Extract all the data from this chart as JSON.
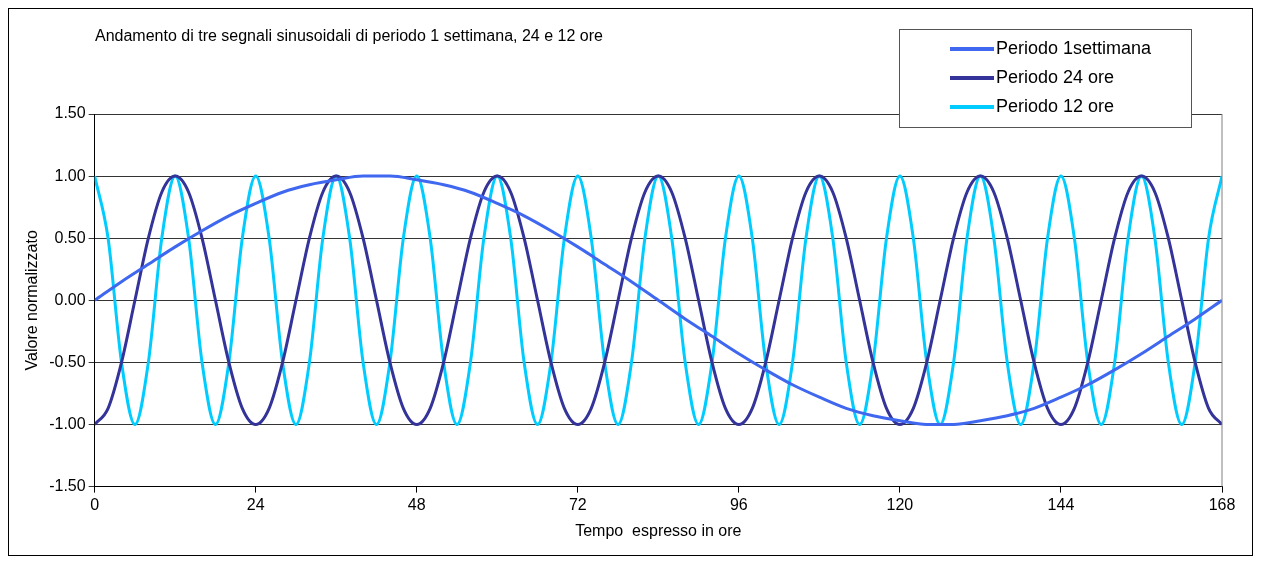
{
  "chart_data": {
    "type": "line",
    "title": "Andamento di tre segnali sinusoidali di periodo 1 settimana, 24 e 12 ore",
    "xlabel": "Tempo  espresso in ore",
    "ylabel": "Valore normalizzato",
    "x": [
      0,
      2,
      4,
      6,
      8,
      10,
      12,
      14,
      16,
      18,
      20,
      22,
      24,
      26,
      28,
      30,
      32,
      34,
      36,
      38,
      40,
      42,
      44,
      46,
      48,
      50,
      52,
      54,
      56,
      58,
      60,
      62,
      64,
      66,
      68,
      70,
      72,
      74,
      76,
      78,
      80,
      82,
      84,
      86,
      88,
      90,
      92,
      94,
      96,
      98,
      100,
      102,
      104,
      106,
      108,
      110,
      112,
      114,
      116,
      118,
      120,
      122,
      124,
      126,
      128,
      130,
      132,
      134,
      136,
      138,
      140,
      142,
      144,
      146,
      148,
      150,
      152,
      154,
      156,
      158,
      160,
      162,
      164,
      166,
      168
    ],
    "series": [
      {
        "name": "Periodo 1settimana",
        "color": "#3f67ef",
        "x": [
          0,
          4,
          8,
          12,
          16,
          20,
          24,
          28,
          32,
          36,
          40,
          44,
          48,
          52,
          56,
          60,
          64,
          68,
          72,
          76,
          80,
          84,
          88,
          92,
          96,
          100,
          104,
          108,
          112,
          116,
          120,
          124,
          128,
          132,
          136,
          140,
          144,
          148,
          152,
          156,
          160,
          164,
          168
        ],
        "values": [
          0,
          0.15,
          0.29,
          0.43,
          0.56,
          0.68,
          0.78,
          0.87,
          0.93,
          0.97,
          1,
          1,
          0.97,
          0.93,
          0.87,
          0.78,
          0.68,
          0.56,
          0.43,
          0.29,
          0.15,
          0,
          -0.15,
          -0.29,
          -0.43,
          -0.56,
          -0.68,
          -0.78,
          -0.87,
          -0.93,
          -0.97,
          -1,
          -1,
          -0.97,
          -0.93,
          -0.87,
          -0.78,
          -0.68,
          -0.56,
          -0.43,
          -0.29,
          -0.15,
          0
        ]
      },
      {
        "name": "Periodo 24 ore",
        "color": "#333399",
        "values": [
          -1,
          -0.87,
          -0.5,
          0,
          0.5,
          0.87,
          1,
          0.87,
          0.5,
          0,
          -0.5,
          -0.87,
          -1,
          -0.87,
          -0.5,
          0,
          0.5,
          0.87,
          1,
          0.87,
          0.5,
          0,
          -0.5,
          -0.87,
          -1,
          -0.87,
          -0.5,
          0,
          0.5,
          0.87,
          1,
          0.87,
          0.5,
          0,
          -0.5,
          -0.87,
          -1,
          -0.87,
          -0.5,
          0,
          0.5,
          0.87,
          1,
          0.87,
          0.5,
          0,
          -0.5,
          -0.87,
          -1,
          -0.87,
          -0.5,
          0,
          0.5,
          0.87,
          1,
          0.87,
          0.5,
          0,
          -0.5,
          -0.87,
          -1,
          -0.87,
          -0.5,
          0,
          0.5,
          0.87,
          1,
          0.87,
          0.5,
          0,
          -0.5,
          -0.87,
          -1,
          -0.87,
          -0.5,
          0,
          0.5,
          0.87,
          1,
          0.87,
          0.5,
          0,
          -0.5,
          -0.87,
          -1
        ]
      },
      {
        "name": "Periodo 12 ore",
        "color": "#00ccff",
        "values": [
          1,
          0.5,
          -0.5,
          -1,
          -0.5,
          0.5,
          1,
          0.5,
          -0.5,
          -1,
          -0.5,
          0.5,
          1,
          0.5,
          -0.5,
          -1,
          -0.5,
          0.5,
          1,
          0.5,
          -0.5,
          -1,
          -0.5,
          0.5,
          1,
          0.5,
          -0.5,
          -1,
          -0.5,
          0.5,
          1,
          0.5,
          -0.5,
          -1,
          -0.5,
          0.5,
          1,
          0.5,
          -0.5,
          -1,
          -0.5,
          0.5,
          1,
          0.5,
          -0.5,
          -1,
          -0.5,
          0.5,
          1,
          0.5,
          -0.5,
          -1,
          -0.5,
          0.5,
          1,
          0.5,
          -0.5,
          -1,
          -0.5,
          0.5,
          1,
          0.5,
          -0.5,
          -1,
          -0.5,
          0.5,
          1,
          0.5,
          -0.5,
          -1,
          -0.5,
          0.5,
          1,
          0.5,
          -0.5,
          -1,
          -0.5,
          0.5,
          1,
          0.5,
          -0.5,
          -1,
          -0.5,
          0.5,
          1
        ]
      }
    ],
    "xlim": [
      0,
      168
    ],
    "xticks": [
      0,
      24,
      48,
      72,
      96,
      120,
      144,
      168
    ],
    "ylim": [
      -1.5,
      1.5
    ],
    "yticks": [
      {
        "value": -1.5,
        "label": "-1.50"
      },
      {
        "value": -1,
        "label": "-1.00"
      },
      {
        "value": -0.5,
        "label": "-0.50"
      },
      {
        "value": 0,
        "label": "0.00"
      },
      {
        "value": 0.5,
        "label": "0.50"
      },
      {
        "value": 1,
        "label": "1.00"
      },
      {
        "value": 1.5,
        "label": "1.50"
      }
    ],
    "grid": "y",
    "legend": "top right",
    "marker": "none",
    "line_style": "solid"
  }
}
